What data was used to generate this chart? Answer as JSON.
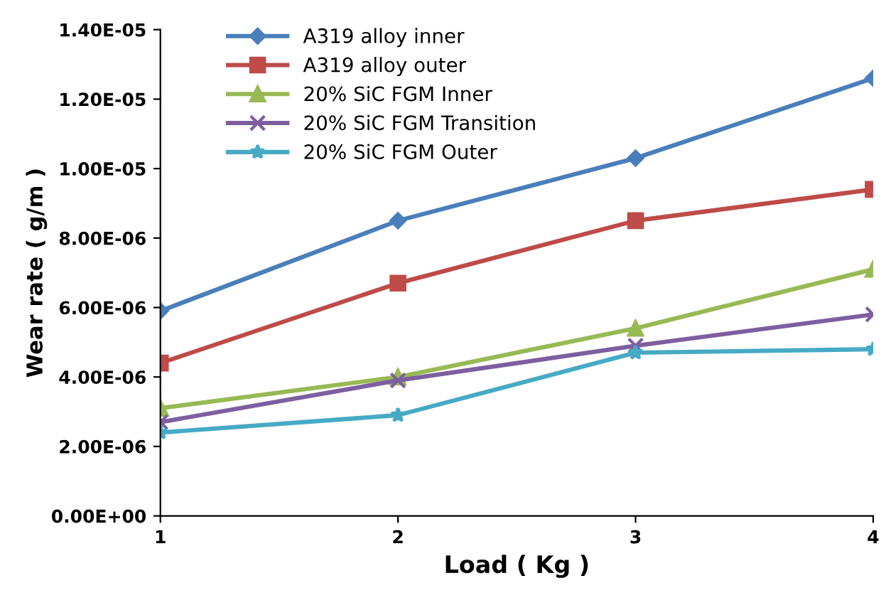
{
  "chart_data": {
    "type": "line",
    "xlabel": "Load ( Kg )",
    "ylabel": "Wear rate ( g/m )",
    "x": [
      1,
      2,
      3,
      4
    ],
    "xlim": [
      1,
      4
    ],
    "xticks": [
      1,
      2,
      3,
      4
    ],
    "ylim": [
      0,
      1.4e-05
    ],
    "yticks": [
      {
        "value": 0,
        "label": "0.00E+00"
      },
      {
        "value": 2e-06,
        "label": "2.00E-06"
      },
      {
        "value": 4e-06,
        "label": "4.00E-06"
      },
      {
        "value": 6e-06,
        "label": "6.00E-06"
      },
      {
        "value": 8e-06,
        "label": "8.00E-06"
      },
      {
        "value": 1e-05,
        "label": "1.00E-05"
      },
      {
        "value": 1.2e-05,
        "label": "1.20E-05"
      },
      {
        "value": 1.4e-05,
        "label": "1.40E-05"
      }
    ],
    "grid": false,
    "legend": "top left",
    "line_style": "solid",
    "series": [
      {
        "name": "A319 alloy inner",
        "color": "#4a7ebb",
        "marker": "diamond",
        "values": [
          5.9e-06,
          8.5e-06,
          1.03e-05,
          1.26e-05
        ]
      },
      {
        "name": "A319 alloy outer",
        "color": "#be4b48",
        "marker": "square",
        "values": [
          4.4e-06,
          6.7e-06,
          8.5e-06,
          9.4e-06
        ]
      },
      {
        "name": "20% SiC FGM Inner",
        "color": "#98b954",
        "marker": "triangle",
        "values": [
          3.1e-06,
          4e-06,
          5.4e-06,
          7.1e-06
        ]
      },
      {
        "name": "20% SiC FGM Transition",
        "color": "#7d5fa0",
        "marker": "cross",
        "values": [
          2.7e-06,
          3.9e-06,
          4.9e-06,
          5.8e-06
        ]
      },
      {
        "name": "20% SiC FGM Outer",
        "color": "#46aac5",
        "marker": "star",
        "values": [
          2.4e-06,
          2.9e-06,
          4.7e-06,
          4.8e-06
        ]
      }
    ]
  }
}
